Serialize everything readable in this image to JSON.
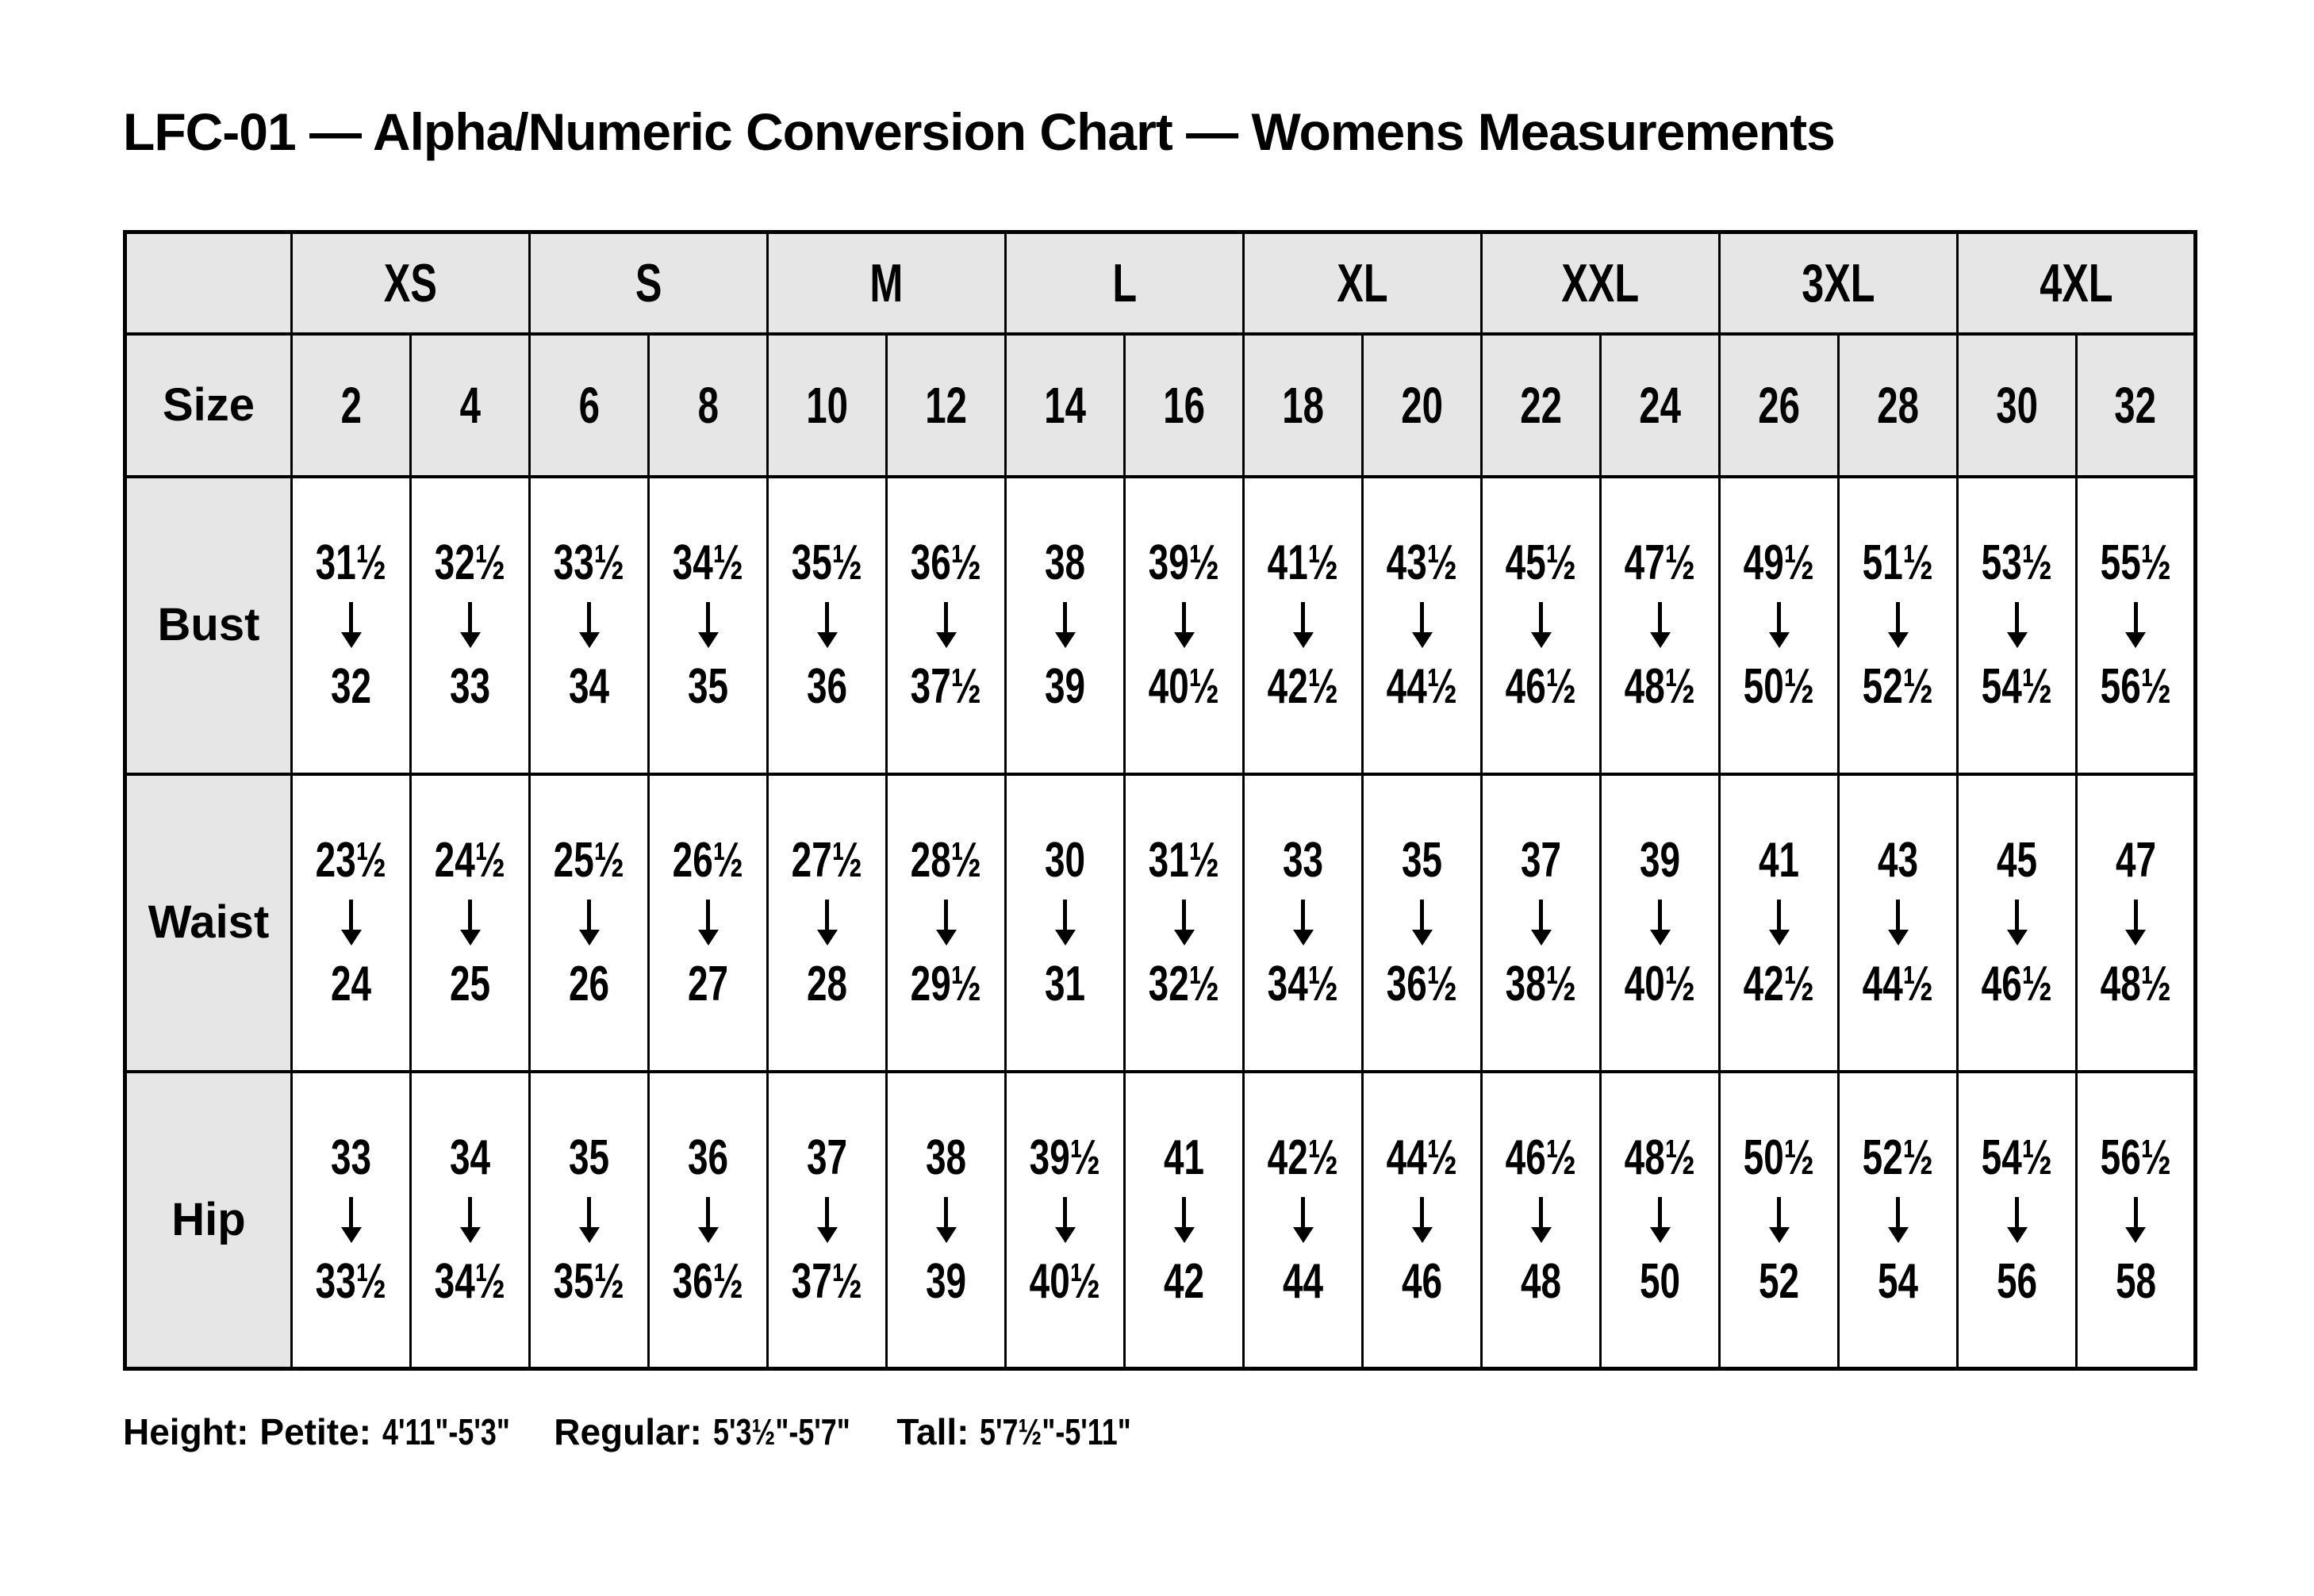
{
  "title": "LFC-01 — Alpha/Numeric Conversion Chart — Womens Measurements",
  "table": {
    "corner_label": "",
    "alpha_sizes": [
      "XS",
      "S",
      "M",
      "L",
      "XL",
      "XXL",
      "3XL",
      "4XL"
    ],
    "size_row_label": "Size",
    "numeric_sizes": [
      "2",
      "4",
      "6",
      "8",
      "10",
      "12",
      "14",
      "16",
      "18",
      "20",
      "22",
      "24",
      "26",
      "28",
      "30",
      "32"
    ],
    "measurement_rows": [
      {
        "label": "Bust",
        "ranges": [
          [
            "31½",
            "32"
          ],
          [
            "32½",
            "33"
          ],
          [
            "33½",
            "34"
          ],
          [
            "34½",
            "35"
          ],
          [
            "35½",
            "36"
          ],
          [
            "36½",
            "37½"
          ],
          [
            "38",
            "39"
          ],
          [
            "39½",
            "40½"
          ],
          [
            "41½",
            "42½"
          ],
          [
            "43½",
            "44½"
          ],
          [
            "45½",
            "46½"
          ],
          [
            "47½",
            "48½"
          ],
          [
            "49½",
            "50½"
          ],
          [
            "51½",
            "52½"
          ],
          [
            "53½",
            "54½"
          ],
          [
            "55½",
            "56½"
          ]
        ]
      },
      {
        "label": "Waist",
        "ranges": [
          [
            "23½",
            "24"
          ],
          [
            "24½",
            "25"
          ],
          [
            "25½",
            "26"
          ],
          [
            "26½",
            "27"
          ],
          [
            "27½",
            "28"
          ],
          [
            "28½",
            "29½"
          ],
          [
            "30",
            "31"
          ],
          [
            "31½",
            "32½"
          ],
          [
            "33",
            "34½"
          ],
          [
            "35",
            "36½"
          ],
          [
            "37",
            "38½"
          ],
          [
            "39",
            "40½"
          ],
          [
            "41",
            "42½"
          ],
          [
            "43",
            "44½"
          ],
          [
            "45",
            "46½"
          ],
          [
            "47",
            "48½"
          ]
        ]
      },
      {
        "label": "Hip",
        "ranges": [
          [
            "33",
            "33½"
          ],
          [
            "34",
            "34½"
          ],
          [
            "35",
            "35½"
          ],
          [
            "36",
            "36½"
          ],
          [
            "37",
            "37½"
          ],
          [
            "38",
            "39"
          ],
          [
            "39½",
            "40½"
          ],
          [
            "41",
            "42"
          ],
          [
            "42½",
            "44"
          ],
          [
            "44½",
            "46"
          ],
          [
            "46½",
            "48"
          ],
          [
            "48½",
            "50"
          ],
          [
            "50½",
            "52"
          ],
          [
            "52½",
            "54"
          ],
          [
            "54½",
            "56"
          ],
          [
            "56½",
            "58"
          ]
        ]
      }
    ]
  },
  "footer": {
    "prefix": "Height:",
    "entries": [
      {
        "label": "Petite:",
        "value": "4'11\"-5'3\""
      },
      {
        "label": "Regular:",
        "value": "5'3½\"-5'7\""
      },
      {
        "label": "Tall:",
        "value": "5'7½\"-5'11\""
      }
    ]
  },
  "colors": {
    "header_bg": "#e6e6e6",
    "cell_bg": "#ffffff",
    "border": "#000000",
    "text": "#000000",
    "page_bg": "#ffffff"
  }
}
